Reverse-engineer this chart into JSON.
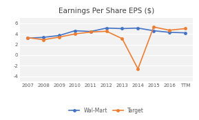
{
  "title": "Earnings Per Share EPS ($)",
  "x_labels": [
    "2007",
    "2008",
    "2009",
    "2010",
    "2011",
    "2012",
    "2013",
    "2014",
    "2015",
    "2016",
    "TTM"
  ],
  "walmart": [
    3.2,
    3.35,
    3.7,
    4.6,
    4.45,
    5.1,
    5.0,
    5.1,
    4.6,
    4.3,
    4.2
  ],
  "target": [
    3.3,
    2.9,
    3.4,
    4.0,
    4.35,
    4.5,
    3.1,
    -2.6,
    5.3,
    4.7,
    5.0
  ],
  "walmart_color": "#4472C4",
  "target_color": "#ED7D31",
  "ylim": [
    -5,
    7
  ],
  "yticks": [
    -4,
    -2,
    0,
    2,
    4,
    6
  ],
  "legend_labels": [
    "Wal-Mart",
    "Target"
  ],
  "bg_color": "#FFFFFF",
  "plot_bg_color": "#F2F2F2",
  "grid_color": "#FFFFFF"
}
